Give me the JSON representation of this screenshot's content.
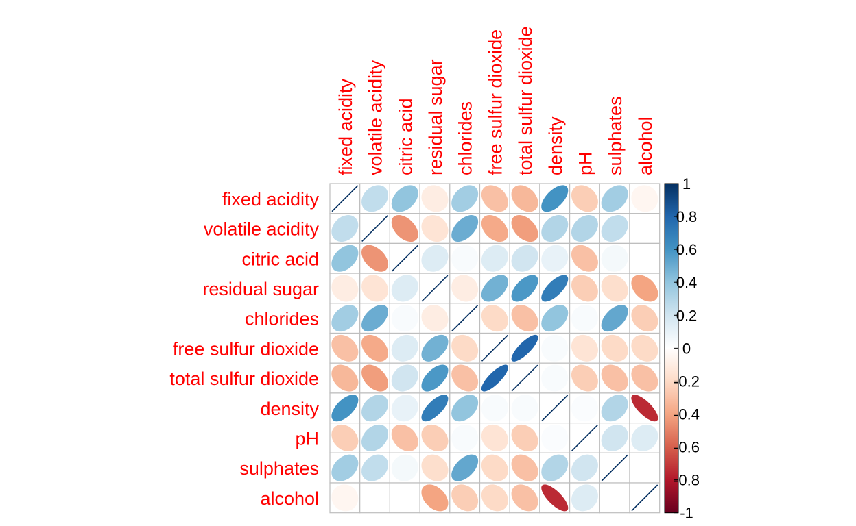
{
  "chart_data": {
    "type": "heatmap",
    "variables": [
      "fixed acidity",
      "volatile acidity",
      "citric acid",
      "residual sugar",
      "chlorides",
      "free sulfur dioxide",
      "total sulfur dioxide",
      "density",
      "pH",
      "sulphates",
      "alcohol"
    ],
    "matrix": [
      [
        1.0,
        0.25,
        0.4,
        -0.1,
        0.35,
        -0.3,
        -0.33,
        0.6,
        -0.25,
        0.35,
        -0.05
      ],
      [
        0.25,
        1.0,
        -0.45,
        -0.15,
        0.5,
        -0.38,
        -0.42,
        0.3,
        0.3,
        0.25,
        0.0
      ],
      [
        0.4,
        -0.45,
        1.0,
        0.15,
        0.03,
        0.15,
        0.2,
        0.1,
        -0.3,
        0.05,
        0.0
      ],
      [
        -0.1,
        -0.15,
        0.15,
        1.0,
        -0.1,
        0.48,
        0.58,
        0.7,
        -0.25,
        -0.18,
        -0.4
      ],
      [
        0.35,
        0.5,
        0.03,
        -0.1,
        1.0,
        -0.2,
        -0.3,
        0.4,
        0.03,
        0.52,
        -0.25
      ],
      [
        -0.3,
        -0.38,
        0.15,
        0.48,
        -0.2,
        1.0,
        0.8,
        0.03,
        -0.15,
        -0.2,
        -0.2
      ],
      [
        -0.33,
        -0.42,
        0.2,
        0.58,
        -0.3,
        0.8,
        1.0,
        0.03,
        -0.25,
        -0.3,
        -0.3
      ],
      [
        0.6,
        0.3,
        0.1,
        0.7,
        0.4,
        0.03,
        0.03,
        1.0,
        0.02,
        0.3,
        -0.75
      ],
      [
        -0.25,
        0.3,
        -0.3,
        -0.25,
        0.03,
        -0.15,
        -0.25,
        0.02,
        1.0,
        0.2,
        0.15
      ],
      [
        0.35,
        0.25,
        0.05,
        -0.18,
        0.52,
        -0.2,
        -0.3,
        0.3,
        0.2,
        1.0,
        0.0
      ],
      [
        -0.05,
        0.0,
        0.0,
        -0.4,
        -0.25,
        -0.2,
        -0.3,
        -0.75,
        0.15,
        0.0,
        1.0
      ]
    ],
    "colorbar": {
      "ticks": [
        "1",
        "0.8",
        "0.6",
        "0.4",
        "0.2",
        "0",
        "-0.2",
        "-0.4",
        "-0.6",
        "-0.8",
        "-1"
      ],
      "range": [
        -1,
        1
      ]
    },
    "colors": {
      "label": "#ff0000",
      "grid": "#bebebe",
      "diag": "#053061",
      "scale": [
        "#67001F",
        "#B2182B",
        "#D6604D",
        "#F4A582",
        "#FDDBC7",
        "#FFFFFF",
        "#D1E5F0",
        "#92C5DE",
        "#4393C3",
        "#2166AC",
        "#053061"
      ]
    },
    "grid": true,
    "legend": "right"
  }
}
